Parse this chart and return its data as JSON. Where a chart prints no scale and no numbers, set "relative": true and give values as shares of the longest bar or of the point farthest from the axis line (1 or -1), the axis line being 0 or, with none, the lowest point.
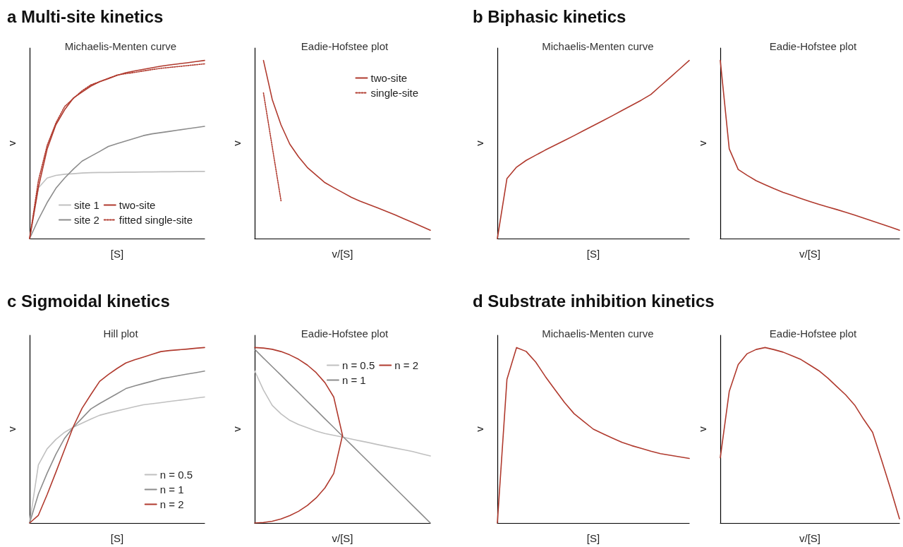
{
  "chart_data": [
    {
      "type": "line",
      "relative": true,
      "title": "a Multi-site kinetics",
      "subtitle": "Michaelis-Menten curve",
      "xlabel": "[S]",
      "ylabel": "v",
      "marker": "none",
      "legend": "bottom right",
      "categories": [
        null,
        null,
        null,
        null,
        null,
        null,
        null,
        null,
        null,
        null,
        null,
        null,
        null,
        null,
        null,
        null,
        null,
        null,
        null,
        null,
        null
      ],
      "series": [
        {
          "name": "site 1",
          "color": "#c0c0c0",
          "values": [
            0,
            0.284,
            0.34,
            0.355,
            0.361,
            0.364,
            0.368,
            0.37,
            0.371,
            0.371,
            0.372,
            0.373,
            0.373,
            0.374,
            0.374,
            0.375,
            0.375,
            0.376,
            0.376,
            0.377,
            0.377
          ]
        },
        {
          "name": "site 2",
          "color": "#8c8c8c",
          "values": [
            0,
            0.107,
            0.202,
            0.282,
            0.34,
            0.39,
            0.435,
            0.462,
            0.489,
            0.517,
            0.533,
            0.548,
            0.563,
            0.578,
            0.588,
            0.595,
            0.602,
            0.609,
            0.616,
            0.623,
            0.63
          ]
        },
        {
          "name": "two-site",
          "color": "#b03a2e",
          "values": [
            0,
            0.287,
            0.502,
            0.639,
            0.723,
            0.789,
            0.823,
            0.856,
            0.881,
            0.898,
            0.916,
            0.931,
            0.941,
            0.95,
            0.959,
            0.968,
            0.975,
            0.981,
            0.987,
            0.994,
            1
          ]
        },
        {
          "name": "fitted single-site",
          "color": "#b03a2e",
          "line_style": "dotted",
          "values": [
            0,
            0.325,
            0.522,
            0.649,
            0.741,
            0.787,
            0.83,
            0.863,
            0.881,
            0.9,
            0.918,
            0.926,
            0.933,
            0.941,
            0.949,
            0.956,
            0.961,
            0.966,
            0.971,
            0.976,
            0.981
          ]
        }
      ]
    },
    {
      "type": "line",
      "relative": true,
      "subtitle": "Eadie-Hofstee plot",
      "xlabel": "v/[S]",
      "ylabel": "v",
      "marker": "none",
      "legend": "top right",
      "categories": [
        null,
        null,
        null,
        null,
        null,
        null,
        null,
        null,
        null,
        null,
        null,
        null,
        null,
        null,
        null,
        null,
        null,
        null,
        null,
        null,
        null
      ],
      "series": [
        {
          "name": "two-site",
          "color": "#b03a2e",
          "values": [
            null,
            1,
            0.781,
            0.638,
            0.53,
            0.459,
            0.399,
            0.356,
            0.314,
            0.286,
            0.259,
            0.232,
            0.21,
            0.191,
            0.172,
            0.153,
            0.133,
            0.111,
            0.09,
            0.068,
            0.047
          ]
        },
        {
          "name": "single-site",
          "color": "#b03a2e",
          "line_style": "dotted",
          "values": [
            null,
            0.818,
            0.515,
            0.212,
            null,
            null,
            null,
            null,
            null,
            null,
            null,
            null,
            null,
            null,
            null,
            null,
            null,
            null,
            null,
            null,
            null
          ]
        }
      ]
    },
    {
      "type": "line",
      "relative": true,
      "title": "b Biphasic kinetics",
      "subtitle": "Michaelis-Menten curve",
      "xlabel": "[S]",
      "ylabel": "v",
      "marker": "none",
      "categories": [
        null,
        null,
        null,
        null,
        null,
        null,
        null,
        null,
        null,
        null,
        null,
        null,
        null,
        null,
        null,
        null,
        null,
        null,
        null,
        null,
        null
      ],
      "series": [
        {
          "color": "#b03a2e",
          "values": [
            0,
            0.337,
            0.401,
            0.439,
            0.468,
            0.497,
            0.524,
            0.551,
            0.578,
            0.606,
            0.634,
            0.662,
            0.69,
            0.719,
            0.748,
            0.777,
            0.809,
            0.857,
            0.904,
            0.952,
            1
          ]
        }
      ]
    },
    {
      "type": "line",
      "relative": true,
      "subtitle": "Eadie-Hofstee plot",
      "xlabel": "v/[S]",
      "ylabel": "v",
      "marker": "none",
      "categories": [
        null,
        null,
        null,
        null,
        null,
        null,
        null,
        null,
        null,
        null,
        null,
        null,
        null,
        null,
        null,
        null,
        null,
        null,
        null,
        null,
        null
      ],
      "series": [
        {
          "color": "#b03a2e",
          "values": [
            1,
            0.504,
            0.388,
            0.355,
            0.325,
            0.302,
            0.28,
            0.26,
            0.243,
            0.225,
            0.208,
            0.192,
            0.177,
            0.163,
            0.148,
            0.132,
            0.115,
            0.098,
            0.081,
            0.064,
            0.047
          ]
        }
      ]
    },
    {
      "type": "line",
      "relative": true,
      "title": "c Sigmoidal kinetics",
      "subtitle": "Hill plot",
      "xlabel": "[S]",
      "ylabel": "v",
      "marker": "none",
      "legend": "bottom right",
      "categories": [
        null,
        null,
        null,
        null,
        null,
        null,
        null,
        null,
        null,
        null,
        null,
        null,
        null,
        null,
        null,
        null,
        null,
        null,
        null,
        null,
        null
      ],
      "series": [
        {
          "name": "n = 0.5",
          "color": "#c0c0c0",
          "values": [
            0,
            0.331,
            0.423,
            0.476,
            0.517,
            0.546,
            0.569,
            0.592,
            0.614,
            0.627,
            0.639,
            0.651,
            0.663,
            0.674,
            0.68,
            0.686,
            0.693,
            0.699,
            0.705,
            0.712,
            0.718
          ]
        },
        {
          "name": "n = 1",
          "color": "#8c8c8c",
          "values": [
            0,
            0.165,
            0.284,
            0.392,
            0.483,
            0.546,
            0.598,
            0.65,
            0.681,
            0.709,
            0.737,
            0.766,
            0.781,
            0.795,
            0.808,
            0.822,
            0.831,
            0.84,
            0.849,
            0.857,
            0.866
          ]
        },
        {
          "name": "n = 2",
          "color": "#b03a2e",
          "values": [
            0,
            0.044,
            0.162,
            0.289,
            0.419,
            0.55,
            0.654,
            0.732,
            0.807,
            0.846,
            0.881,
            0.912,
            0.93,
            0.945,
            0.961,
            0.977,
            0.983,
            0.987,
            0.991,
            0.996,
            1
          ]
        }
      ]
    },
    {
      "type": "line",
      "relative": true,
      "subtitle": "Eadie-Hofstee plot",
      "xlabel": "v/[S]",
      "ylabel": "v",
      "marker": "none",
      "legend": "top right",
      "categories": [
        null,
        null,
        null,
        null,
        null,
        null,
        null,
        null,
        null,
        null,
        null,
        null,
        null,
        null,
        null,
        null,
        null,
        null,
        null,
        null,
        null
      ],
      "series": [
        {
          "name": "n = 0.5",
          "color": "#c0c0c0",
          "values": [
            0.867,
            0.758,
            0.67,
            0.622,
            0.585,
            0.561,
            0.543,
            0.524,
            0.51,
            0.5,
            0.49,
            0.479,
            0.468,
            0.458,
            0.447,
            0.437,
            0.427,
            0.417,
            0.407,
            0.394,
            0.382
          ]
        },
        {
          "name": "n = 1",
          "color": "#8c8c8c",
          "values": [
            0.99,
            0.94,
            0.891,
            0.842,
            0.792,
            0.743,
            0.693,
            0.644,
            0.594,
            0.545,
            0.495,
            0.446,
            0.396,
            0.347,
            0.297,
            0.248,
            0.198,
            0.149,
            0.099,
            0.05,
            0
          ]
        },
        {
          "name": "n = 2",
          "color": "#b03a2e",
          "values": [
            1,
            0.997,
            0.99,
            0.977,
            0.958,
            0.933,
            0.9,
            0.857,
            0.8,
            0.718,
            0.5,
            null,
            null,
            null,
            null,
            null,
            null,
            null,
            null,
            null,
            null
          ]
        },
        {
          "color": "#b03a2e",
          "values": [
            0,
            0.003,
            0.01,
            0.023,
            0.042,
            0.067,
            0.1,
            0.143,
            0.2,
            0.282,
            0.5,
            null,
            null,
            null,
            null,
            null,
            null,
            null,
            null,
            null,
            null
          ]
        }
      ]
    },
    {
      "type": "line",
      "relative": true,
      "title": "d Substrate inhibition kinetics",
      "subtitle": "Michaelis-Menten curve",
      "xlabel": "[S]",
      "ylabel": "v",
      "marker": "none",
      "categories": [
        null,
        null,
        null,
        null,
        null,
        null,
        null,
        null,
        null,
        null,
        null,
        null,
        null,
        null,
        null,
        null,
        null,
        null,
        null,
        null,
        null
      ],
      "series": [
        {
          "color": "#b03a2e",
          "values": [
            0,
            0.819,
            1,
            0.978,
            0.917,
            0.835,
            0.76,
            0.687,
            0.623,
            0.579,
            0.535,
            0.509,
            0.484,
            0.46,
            0.441,
            0.425,
            0.409,
            0.395,
            0.386,
            0.377,
            0.368
          ]
        }
      ]
    },
    {
      "type": "line",
      "relative": true,
      "subtitle": "Eadie-Hofstee plot",
      "xlabel": "v/[S]",
      "ylabel": "v",
      "marker": "none",
      "categories": [
        null,
        null,
        null,
        null,
        null,
        null,
        null,
        null,
        null,
        null,
        null,
        null,
        null,
        null,
        null,
        null,
        null,
        null,
        null,
        null,
        null
      ],
      "series": [
        {
          "color": "#b03a2e",
          "values": [
            0.372,
            0.75,
            0.903,
            0.965,
            0.989,
            1,
            0.988,
            0.974,
            0.953,
            0.932,
            0.9,
            0.868,
            0.826,
            0.778,
            0.73,
            0.672,
            0.591,
            0.517,
            0.359,
            0.196,
            0.024
          ]
        }
      ]
    }
  ]
}
